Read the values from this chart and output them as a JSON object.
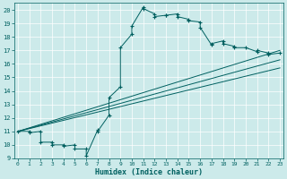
{
  "xlabel": "Humidex (Indice chaleur)",
  "bg_color": "#cceaea",
  "line_color": "#006060",
  "xlim": [
    -0.3,
    23.3
  ],
  "ylim": [
    9,
    20.5
  ],
  "yticks": [
    9,
    10,
    11,
    12,
    13,
    14,
    15,
    16,
    17,
    18,
    19,
    20
  ],
  "xticks": [
    0,
    1,
    2,
    3,
    4,
    5,
    6,
    7,
    8,
    9,
    10,
    11,
    12,
    13,
    14,
    15,
    16,
    17,
    18,
    19,
    20,
    21,
    22,
    23
  ],
  "main_series": [
    [
      0,
      11
    ],
    [
      1,
      11
    ],
    [
      1,
      10.9
    ],
    [
      2,
      11
    ],
    [
      2,
      10.2
    ],
    [
      3,
      10.2
    ],
    [
      3,
      10
    ],
    [
      4,
      10
    ],
    [
      4,
      9.9
    ],
    [
      5,
      10
    ],
    [
      5,
      9.7
    ],
    [
      6,
      9.7
    ],
    [
      6,
      9.2
    ],
    [
      7,
      11.1
    ],
    [
      7,
      11
    ],
    [
      8,
      12.2
    ],
    [
      8,
      13.5
    ],
    [
      9,
      14.3
    ],
    [
      9,
      17.2
    ],
    [
      10,
      18.2
    ],
    [
      10,
      18.8
    ],
    [
      11,
      20.2
    ],
    [
      11,
      20.1
    ],
    [
      12,
      19.7
    ],
    [
      12,
      19.5
    ],
    [
      13,
      19.6
    ],
    [
      13,
      19.6
    ],
    [
      14,
      19.7
    ],
    [
      14,
      19.5
    ],
    [
      15,
      19.3
    ],
    [
      15,
      19.2
    ],
    [
      16,
      19.1
    ],
    [
      16,
      18.7
    ],
    [
      17,
      17.4
    ],
    [
      17,
      17.5
    ],
    [
      18,
      17.7
    ],
    [
      18,
      17.5
    ],
    [
      19,
      17.3
    ],
    [
      19,
      17.2
    ],
    [
      20,
      17.2
    ],
    [
      21,
      16.9
    ],
    [
      21,
      17.0
    ],
    [
      22,
      16.8
    ],
    [
      22,
      16.7
    ],
    [
      23,
      16.8
    ]
  ],
  "ref_lines": [
    {
      "x": [
        0,
        23
      ],
      "y": [
        11,
        17.0
      ]
    },
    {
      "x": [
        0,
        23
      ],
      "y": [
        11,
        16.3
      ]
    },
    {
      "x": [
        0,
        23
      ],
      "y": [
        11,
        15.7
      ]
    }
  ]
}
